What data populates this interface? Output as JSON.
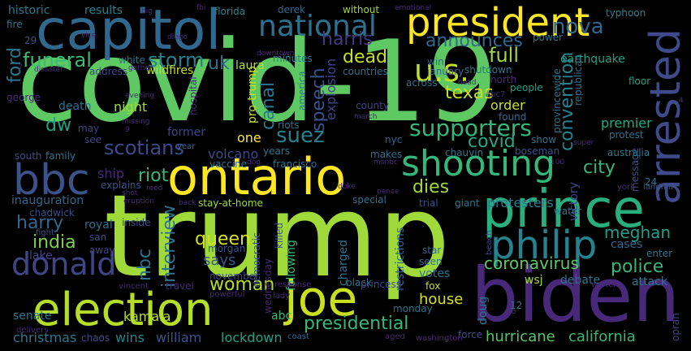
{
  "background": "#000000",
  "words": [
    {
      "text": "covid-19",
      "color": "#5ec962"
    },
    {
      "text": "trump",
      "color": "#9fda3a"
    },
    {
      "text": "biden",
      "color": "#482878"
    },
    {
      "text": "prince",
      "color": "#29af7f"
    },
    {
      "text": "capitol",
      "color": "#31688e"
    },
    {
      "text": "ontario",
      "color": "#fde725"
    },
    {
      "text": "president",
      "color": "#fde725"
    },
    {
      "text": "election",
      "color": "#b5de2b"
    },
    {
      "text": "joe",
      "color": "#c8e020"
    },
    {
      "text": "philip",
      "color": "#26828e"
    },
    {
      "text": "bbc",
      "color": "#3b528b"
    },
    {
      "text": "arrested",
      "color": "#3e4a89"
    },
    {
      "text": "shooting",
      "color": "#35b779"
    },
    {
      "text": "national",
      "color": "#2c728e"
    },
    {
      "text": "donald",
      "color": "#414487"
    },
    {
      "text": "u.s.",
      "color": "#c2df23"
    },
    {
      "text": "supporters",
      "color": "#35b779"
    },
    {
      "text": "nova",
      "color": "#31688e"
    },
    {
      "text": "announces",
      "color": "#31688e"
    },
    {
      "text": "harris",
      "color": "#443983"
    },
    {
      "text": "convention",
      "color": "#26828e"
    },
    {
      "text": "storm",
      "color": "#27808e"
    },
    {
      "text": "funeral",
      "color": "#3cbb75"
    },
    {
      "text": "full",
      "color": "#9fda3a"
    },
    {
      "text": "dead",
      "color": "#c8e020"
    },
    {
      "text": "ford",
      "color": "#2a788e"
    },
    {
      "text": "uk",
      "color": "#2c728e"
    },
    {
      "text": "texas",
      "color": "#c8e020"
    },
    {
      "text": "speech",
      "color": "#3b528b"
    },
    {
      "text": "suez",
      "color": "#26828e"
    },
    {
      "text": "covid",
      "color": "#22a884"
    },
    {
      "text": "canal",
      "color": "#2a788e"
    },
    {
      "text": "dw",
      "color": "#1fa187"
    },
    {
      "text": "scotians",
      "color": "#3e4a89"
    },
    {
      "text": "riot",
      "color": "#35b779"
    },
    {
      "text": "city",
      "color": "#35b779"
    },
    {
      "text": "dies",
      "color": "#a0da39"
    },
    {
      "text": "harry",
      "color": "#31688e"
    },
    {
      "text": "india",
      "color": "#7ad151"
    },
    {
      "text": "queen",
      "color": "#d8e219"
    },
    {
      "text": "nbc",
      "color": "#2c728e"
    },
    {
      "text": "interview",
      "color": "#2c728e"
    },
    {
      "text": "police",
      "color": "#35b779"
    },
    {
      "text": "meghan",
      "color": "#1f9e89"
    },
    {
      "text": "protesters",
      "color": "#2a788e"
    },
    {
      "text": "woman",
      "color": "#b5de2b"
    },
    {
      "text": "says",
      "color": "#3b528b"
    },
    {
      "text": "coronavirus",
      "color": "#5ec962"
    },
    {
      "text": "presidential",
      "color": "#35b779"
    },
    {
      "text": "hurricane",
      "color": "#52c569"
    },
    {
      "text": "california",
      "color": "#35b779"
    },
    {
      "text": "christmas",
      "color": "#2a788e"
    },
    {
      "text": "wins",
      "color": "#26828e"
    },
    {
      "text": "william",
      "color": "#3b528b"
    },
    {
      "text": "lockdown",
      "color": "#1fa187"
    },
    {
      "text": "house",
      "color": "#d8e219"
    },
    {
      "text": "kamala",
      "color": "#b5de2b"
    },
    {
      "text": "senate",
      "color": "#2a788e"
    },
    {
      "text": "lake",
      "color": "#414487"
    },
    {
      "text": "royal",
      "color": "#2c728e"
    },
    {
      "text": "ship",
      "color": "#482878"
    },
    {
      "text": "volcano",
      "color": "#3e4a89"
    },
    {
      "text": "explosion",
      "color": "#414487"
    },
    {
      "text": "night",
      "color": "#9fda3a"
    },
    {
      "text": "death",
      "color": "#2c728e"
    },
    {
      "text": "historic",
      "color": "#2a788e"
    },
    {
      "text": "results",
      "color": "#26828e"
    },
    {
      "text": "earthquake",
      "color": "#1f9e89"
    },
    {
      "text": "wildfires",
      "color": "#c2df23"
    },
    {
      "text": "laura",
      "color": "#b5de2b"
    },
    {
      "text": "minutes",
      "color": "#26828e"
    },
    {
      "text": "florida",
      "color": "#26828e"
    },
    {
      "text": "derek",
      "color": "#31688e"
    },
    {
      "text": "typhoon",
      "color": "#26828e"
    },
    {
      "text": "without",
      "color": "#9fda3a"
    },
    {
      "text": "fire",
      "color": "#2a788e"
    },
    {
      "text": "january",
      "color": "#31688e"
    },
    {
      "text": "shutdown",
      "color": "#2a788e"
    },
    {
      "text": "across",
      "color": "#2c728e"
    },
    {
      "text": "people",
      "color": "#1fa187"
    },
    {
      "text": "floor",
      "color": "#1fa187"
    },
    {
      "text": "order",
      "color": "#c8e020"
    },
    {
      "text": "found",
      "color": "#31688e"
    },
    {
      "text": "premier",
      "color": "#22a884"
    },
    {
      "text": "protest",
      "color": "#2c728e"
    },
    {
      "text": "county",
      "color": "#414487"
    },
    {
      "text": "riots",
      "color": "#2c728e"
    },
    {
      "text": "former",
      "color": "#414487"
    },
    {
      "text": "one",
      "color": "#fde725"
    },
    {
      "text": "years",
      "color": "#2a788e"
    },
    {
      "text": "message",
      "color": "#3b528b"
    },
    {
      "text": "victory",
      "color": "#3e4a89"
    },
    {
      "text": "makes",
      "color": "#2c728e"
    },
    {
      "text": "chauvin",
      "color": "#2a788e"
    },
    {
      "text": "boseman",
      "color": "#3b528b"
    },
    {
      "text": "australia",
      "color": "#2a788e"
    },
    {
      "text": "family",
      "color": "#2c728e"
    },
    {
      "text": "vaccine",
      "color": "#2c728e"
    },
    {
      "text": "francisco",
      "color": "#2c728e"
    },
    {
      "text": "explains",
      "color": "#3b528b"
    },
    {
      "text": "inauguration",
      "color": "#31688e"
    },
    {
      "text": "chadwick",
      "color": "#3e4a89"
    },
    {
      "text": "stay-at-home",
      "color": "#9fda3a"
    },
    {
      "text": "special",
      "color": "#2c728e"
    },
    {
      "text": "trial",
      "color": "#3b528b"
    },
    {
      "text": "giant",
      "color": "#2a788e"
    },
    {
      "text": "water",
      "color": "#2c728e"
    },
    {
      "text": "cases",
      "color": "#31688e"
    },
    {
      "text": "attack",
      "color": "#2a788e"
    },
    {
      "text": "debate",
      "color": "#2c728e"
    },
    {
      "text": "wsj",
      "color": "#9fda3a"
    },
    {
      "text": "votes",
      "color": "#2c728e"
    },
    {
      "text": "seen",
      "color": "#2c728e"
    },
    {
      "text": "star",
      "color": "#31688e"
    },
    {
      "text": "following",
      "color": "#35b779"
    },
    {
      "text": "charged",
      "color": "#2c728e"
    },
    {
      "text": "restrictions",
      "color": "#31688e"
    },
    {
      "text": "black",
      "color": "#2c728e"
    },
    {
      "text": "fox",
      "color": "#c8e020"
    },
    {
      "text": "monday",
      "color": "#2c728e"
    },
    {
      "text": "force",
      "color": "#3e4a89"
    },
    {
      "text": "doug",
      "color": "#2a788e"
    },
    {
      "text": "abc",
      "color": "#35b779"
    },
    {
      "text": "morgan",
      "color": "#3b528b"
    },
    {
      "text": "november",
      "color": "#414487"
    },
    {
      "text": "travel",
      "color": "#482878"
    },
    {
      "text": "away",
      "color": "#414487"
    },
    {
      "text": "san",
      "color": "#3b528b"
    },
    {
      "text": "inside",
      "color": "#3e4a89"
    },
    {
      "text": "killed",
      "color": "#3b528b"
    },
    {
      "text": "wednesday",
      "color": "#482878"
    },
    {
      "text": "democratic",
      "color": "#3b528b"
    },
    {
      "text": "princess",
      "color": "#3e4a89"
    },
    {
      "text": "pro-trump",
      "color": "#c8e020"
    },
    {
      "text": "america",
      "color": "#2a788e"
    },
    {
      "text": "nyc",
      "color": "#31688e"
    },
    {
      "text": "republican",
      "color": "#2c728e"
    },
    {
      "text": "provincewide",
      "color": "#2c728e"
    },
    {
      "text": "white",
      "color": "#2a788e"
    },
    {
      "text": "address",
      "color": "#414487"
    },
    {
      "text": "power",
      "color": "#2a788e"
    },
    {
      "text": "win",
      "color": "#31688e"
    },
    {
      "text": "countries",
      "color": "#2c728e"
    },
    {
      "text": "hospital",
      "color": "#482878"
    },
    {
      "text": "see",
      "color": "#414487"
    },
    {
      "text": "may",
      "color": "#414487"
    },
    {
      "text": "south",
      "color": "#3e4a89"
    },
    {
      "text": "year",
      "color": "#31688e"
    },
    {
      "text": "fight",
      "color": "#3b528b"
    },
    {
      "text": "delivers",
      "color": "#482878"
    },
    {
      "text": "vincent",
      "color": "#482878"
    },
    {
      "text": "powerful",
      "color": "#482878"
    },
    {
      "text": "response",
      "color": "#482878"
    },
    {
      "text": "lady",
      "color": "#482878"
    },
    {
      "text": "aged",
      "color": "#482878"
    },
    {
      "text": "washington",
      "color": "#482878"
    },
    {
      "text": "chaos",
      "color": "#3e4a89"
    },
    {
      "text": "coast",
      "color": "#31688e"
    },
    {
      "text": "enter",
      "color": "#2c728e"
    },
    {
      "text": "oprah",
      "color": "#414487"
    },
    {
      "text": "walter",
      "color": "#482878"
    },
    {
      "text": "york",
      "color": "#482878"
    },
    {
      "text": "landfall",
      "color": "#3b528b"
    },
    {
      "text": "beach",
      "color": "#414487"
    },
    {
      "text": "12",
      "color": "#2c728e"
    },
    {
      "text": "north",
      "color": "#482878"
    },
    {
      "text": "abc7",
      "color": "#482878"
    },
    {
      "text": "head",
      "color": "#482878"
    },
    {
      "text": "super",
      "color": "#482878"
    },
    {
      "text": "show",
      "color": "#2c728e"
    },
    {
      "text": "march",
      "color": "#482878"
    },
    {
      "text": "msnbc",
      "color": "#482878"
    },
    {
      "text": "duke",
      "color": "#482878"
    },
    {
      "text": "pence",
      "color": "#482878"
    },
    {
      "text": "100",
      "color": "#482878"
    },
    {
      "text": "24",
      "color": "#2c728e"
    },
    {
      "text": "29",
      "color": "#3b528b"
    },
    {
      "text": "vice",
      "color": "#482878"
    },
    {
      "text": "diego",
      "color": "#482878"
    },
    {
      "text": "big",
      "color": "#482878"
    },
    {
      "text": "fbi",
      "color": "#482878"
    },
    {
      "text": "gather",
      "color": "#482878"
    },
    {
      "text": "downtown",
      "color": "#482878"
    },
    {
      "text": "disaster",
      "color": "#482878"
    },
    {
      "text": "george",
      "color": "#482878"
    },
    {
      "text": "evening",
      "color": "#482878"
    },
    {
      "text": "missing",
      "color": "#482878"
    },
    {
      "text": "9",
      "color": "#482878"
    },
    {
      "text": "shot",
      "color": "#482878"
    },
    {
      "text": "reed",
      "color": "#482878"
    },
    {
      "text": "back",
      "color": "#482878"
    },
    {
      "text": "eruption",
      "color": "#482878"
    },
    {
      "text": "dog",
      "color": "#482878"
    },
    {
      "text": "emotional",
      "color": "#482878"
    },
    {
      "text": "go",
      "color": "#482878"
    },
    {
      "text": "2",
      "color": "#482878"
    },
    {
      "text": "7",
      "color": "#482878"
    },
    {
      "text": "4",
      "color": "#482878"
    }
  ]
}
